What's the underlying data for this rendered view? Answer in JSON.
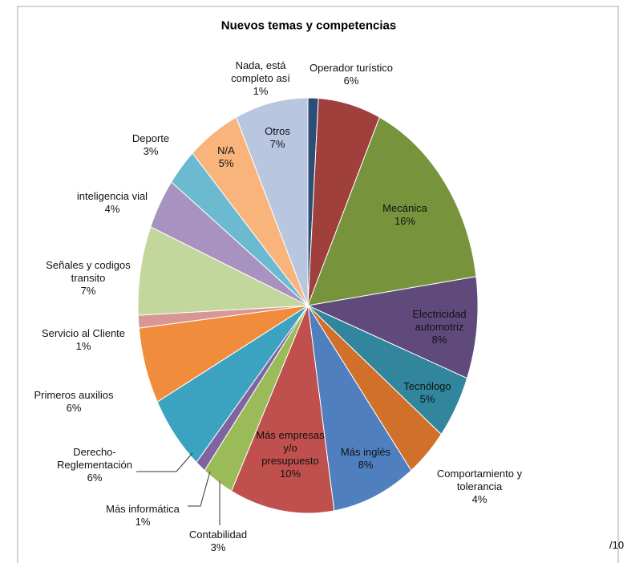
{
  "chart_data": {
    "type": "pie",
    "title": "Nuevos temas y competencias",
    "categories": [
      "Nada, está completo así",
      "Operador turístico",
      "Mecánica",
      "Electricidad automotriz",
      "Tecnólogo",
      "Comportamiento y tolerancia",
      "Más inglés",
      "Más empresas y/o presupuesto",
      "Contabilidad",
      "Más informática",
      "Derecho-Reglementación",
      "Primeros auxilios",
      "Servicio al Cliente",
      "Señales y codigos transito",
      "inteligencia vial",
      "Deporte",
      "N/A",
      "Otros"
    ],
    "values": [
      1,
      6,
      16,
      8,
      5,
      4,
      8,
      10,
      3,
      1,
      6,
      6,
      1,
      7,
      4,
      3,
      5,
      7
    ],
    "value_labels": [
      "1%",
      "6%",
      "16%",
      "8%",
      "5%",
      "4%",
      "8%",
      "10%",
      "3%",
      "1%",
      "6%",
      "6%",
      "1%",
      "7%",
      "4%",
      "3%",
      "5%",
      "7%"
    ],
    "colors": [
      "#2c4d75",
      "#a0403d",
      "#77933c",
      "#604a7b",
      "#31859c",
      "#d0702a",
      "#4f7fbf",
      "#c0504d",
      "#9bbb59",
      "#8064a2",
      "#3ba3c0",
      "#f08c3c",
      "#d99694",
      "#c3d69b",
      "#a893c0",
      "#6cbad0",
      "#f9b47c",
      "#b9c6e0"
    ]
  },
  "edge_text": "/10"
}
